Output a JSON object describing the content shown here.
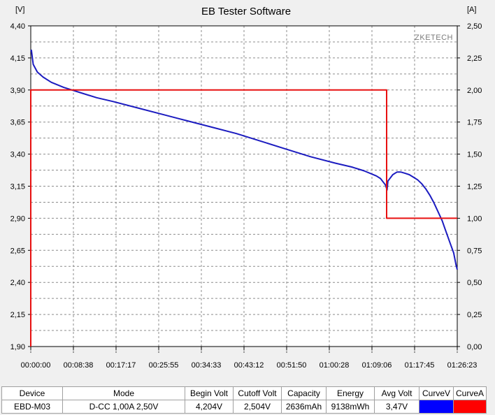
{
  "window": {
    "title": "EB Tester Software",
    "watermark": "ZKETECH"
  },
  "chart_data": {
    "type": "line",
    "title": "EB Tester Software",
    "x_ticks": [
      "00:00:00",
      "00:08:38",
      "00:17:17",
      "00:25:55",
      "00:34:33",
      "00:43:12",
      "00:51:50",
      "01:00:28",
      "01:09:06",
      "01:17:45",
      "01:26:23"
    ],
    "x_range_seconds": [
      0,
      5183
    ],
    "y_left": {
      "unit": "[V]",
      "range": [
        1.9,
        4.4
      ],
      "ticks": [
        "4,40",
        "4,15",
        "3,90",
        "3,65",
        "3,40",
        "3,15",
        "2,90",
        "2,65",
        "2,40",
        "2,15",
        "1,90"
      ]
    },
    "y_right": {
      "unit": "[A]",
      "range": [
        0.0,
        2.5
      ],
      "ticks": [
        "2,50",
        "2,25",
        "2,00",
        "1,75",
        "1,50",
        "1,25",
        "1,00",
        "0,75",
        "0,50",
        "0,25",
        "0,00"
      ]
    },
    "grid": true,
    "series": [
      {
        "axis": "left",
        "color": "#1c1cc0",
        "x": [
          0,
          8,
          30,
          80,
          150,
          250,
          400,
          600,
          800,
          1000,
          1300,
          1600,
          1900,
          2200,
          2500,
          2800,
          3100,
          3400,
          3700,
          3900,
          4050,
          4200,
          4250,
          4310,
          4330,
          4340,
          4400,
          4450,
          4500,
          4550,
          4600,
          4650,
          4700,
          4750,
          4800,
          4850,
          4900,
          4950,
          5000,
          5050,
          5100,
          5140,
          5170,
          5183
        ],
        "y": [
          4.2,
          4.21,
          4.1,
          4.04,
          4.0,
          3.96,
          3.92,
          3.88,
          3.84,
          3.81,
          3.76,
          3.71,
          3.66,
          3.61,
          3.56,
          3.5,
          3.44,
          3.38,
          3.33,
          3.3,
          3.27,
          3.23,
          3.21,
          3.16,
          3.12,
          3.19,
          3.24,
          3.26,
          3.26,
          3.25,
          3.24,
          3.22,
          3.2,
          3.17,
          3.13,
          3.08,
          3.02,
          2.95,
          2.88,
          2.79,
          2.7,
          2.63,
          2.53,
          2.5
        ]
      },
      {
        "axis": "right",
        "color": "#e81010",
        "x": [
          0,
          0,
          4325,
          4325,
          5183
        ],
        "y": [
          0.0,
          2.0,
          2.0,
          1.0,
          1.0
        ]
      }
    ]
  },
  "summary_table": {
    "headers": [
      "Device",
      "Mode",
      "Begin Volt",
      "Cutoff Volt",
      "Capacity",
      "Energy",
      "Avg Volt",
      "CurveV",
      "CurveA"
    ],
    "row": {
      "device": "EBD-M03",
      "mode": "D-CC  1,00A  2,50V",
      "begin_volt": "4,204V",
      "cutoff_volt": "2,504V",
      "capacity": "2636mAh",
      "energy": "9138mWh",
      "avg_volt": "3,47V",
      "curve_v_color": "#0000ff",
      "curve_a_color": "#ff0000"
    }
  }
}
